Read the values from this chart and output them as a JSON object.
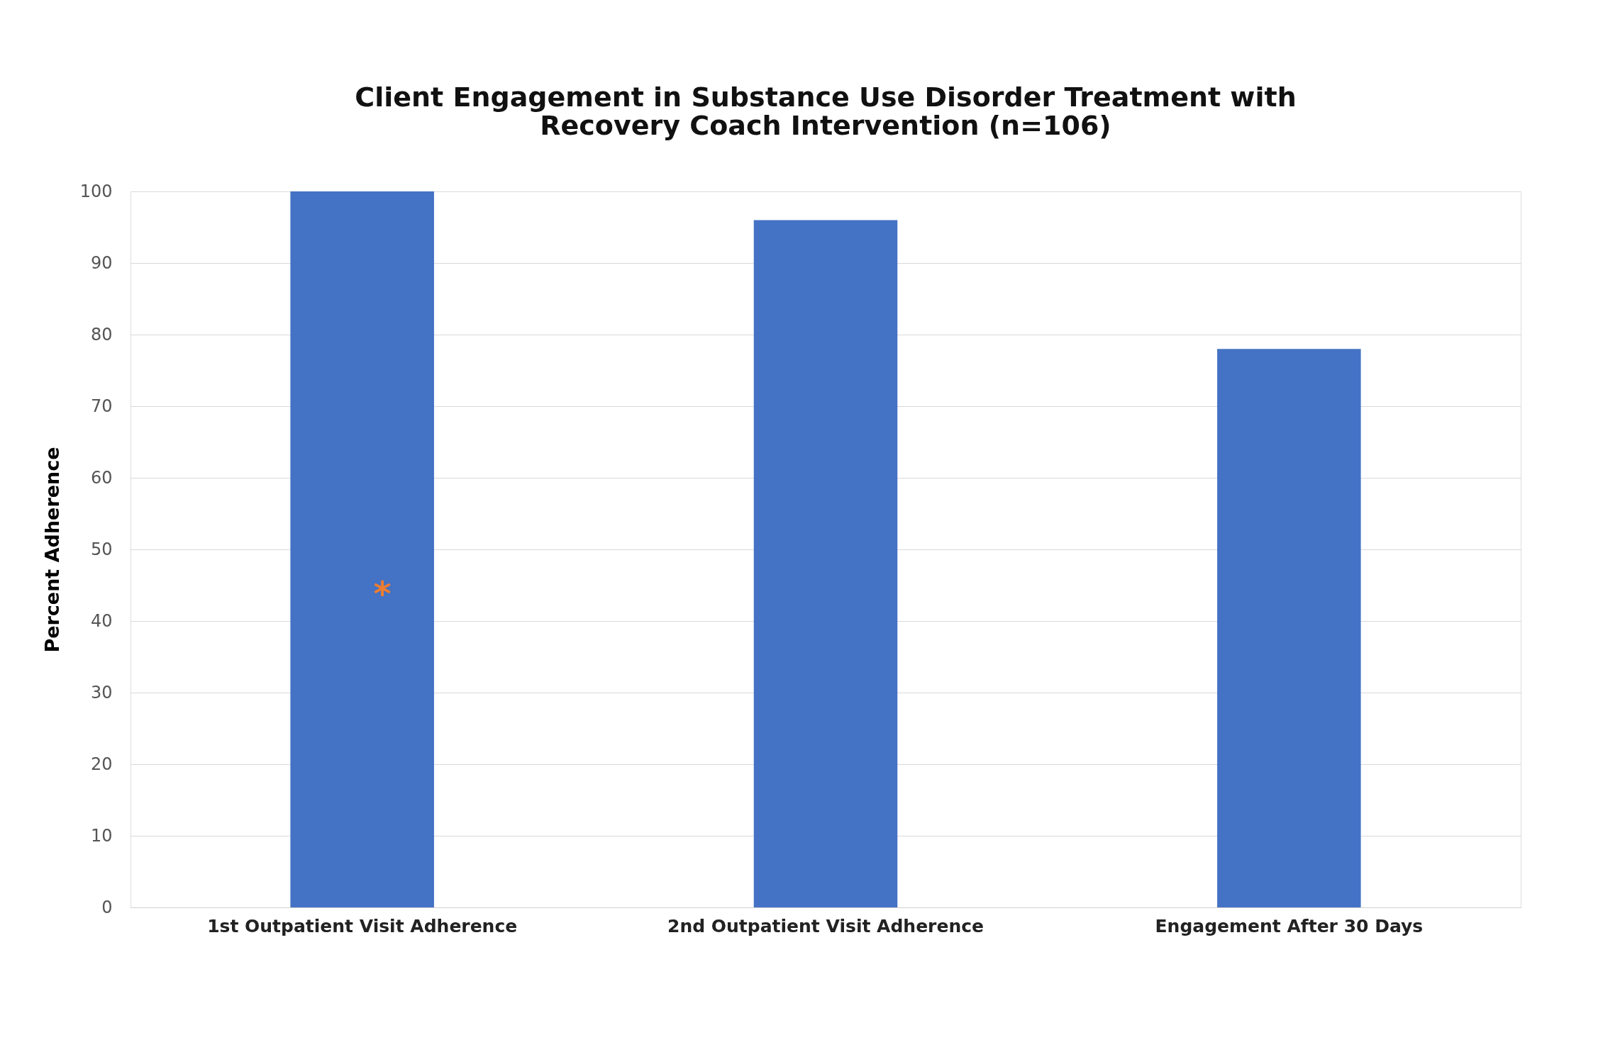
{
  "chart_data": {
    "type": "bar",
    "title": "Client Engagement in Substance Use Disorder Treatment with Recovery Coach Intervention (n=106)",
    "ylabel": "Percent Adherence",
    "categories": [
      "1st Outpatient Visit Adherence",
      "2nd Outpatient Visit Adherence",
      "Engagement After 30 Days"
    ],
    "values": [
      100,
      96,
      78
    ],
    "color": "#4472c4",
    "ylim": [
      0,
      100
    ],
    "yticks": [
      0,
      10,
      20,
      30,
      40,
      50,
      60,
      70,
      80,
      90,
      100
    ],
    "grid": "y",
    "annotations": [
      "*"
    ]
  }
}
